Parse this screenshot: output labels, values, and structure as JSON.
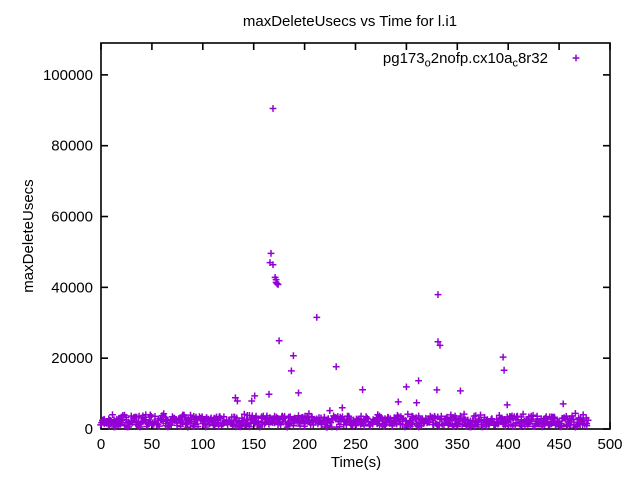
{
  "chart_data": {
    "type": "scatter",
    "title": "maxDeleteUsecs vs Time for l.i1",
    "xlabel": "Time(s)",
    "ylabel": "maxDeleteUsecs",
    "xlim": [
      0,
      500
    ],
    "ylim": [
      0,
      109000
    ],
    "xticks": [
      0,
      50,
      100,
      150,
      200,
      250,
      300,
      350,
      400,
      450,
      500
    ],
    "yticks": [
      0,
      20000,
      40000,
      60000,
      80000,
      100000
    ],
    "grid": false,
    "colors": {
      "marker": "#9400D3",
      "axis": "#000000",
      "background": "#ffffff"
    },
    "legend": {
      "position": "top-right-inside",
      "entries": [
        {
          "label_plain": "pg173_o2nofp.cx10a_c8r32",
          "label_parts": [
            {
              "t": "pg173"
            },
            {
              "sub": "o"
            },
            {
              "t": "2nofp.cx10a"
            },
            {
              "sub": "c"
            },
            {
              "t": "8r32"
            }
          ],
          "marker": "plus",
          "color": "#9400D3"
        }
      ]
    },
    "series": [
      {
        "name": "pg173_o2nofp.cx10a_c8r32",
        "marker": "plus",
        "color": "#9400D3",
        "points": [
          [
            132,
            8800
          ],
          [
            134,
            7900
          ],
          [
            148,
            7900
          ],
          [
            151,
            9350
          ],
          [
            165,
            9800
          ],
          [
            166,
            47000
          ],
          [
            167,
            49600
          ],
          [
            169,
            90500
          ],
          [
            169,
            46400
          ],
          [
            171,
            42800
          ],
          [
            172,
            42200
          ],
          [
            172,
            41400
          ],
          [
            173,
            41000
          ],
          [
            174,
            40800
          ],
          [
            175,
            24900
          ],
          [
            187,
            16400
          ],
          [
            189,
            20700
          ],
          [
            194,
            10200
          ],
          [
            212,
            31500
          ],
          [
            231,
            17600
          ],
          [
            237,
            6000
          ],
          [
            257,
            11100
          ],
          [
            292,
            7650
          ],
          [
            300,
            11900
          ],
          [
            310,
            7400
          ],
          [
            312,
            13600
          ],
          [
            330,
            11050
          ],
          [
            331,
            24650
          ],
          [
            331,
            37950
          ],
          [
            333,
            23600
          ],
          [
            353,
            10750
          ],
          [
            395,
            20300
          ],
          [
            396,
            16600
          ],
          [
            399,
            6800
          ],
          [
            454,
            7100
          ]
        ],
        "noise_band": {
          "description": "dense noise floor of samples roughly every ~0.65s",
          "t_min": 0,
          "t_max": 478,
          "count": 740,
          "seed": 1337,
          "v_base": 500,
          "v_spread": 3200,
          "bump1_p": 0.3,
          "bump1_v": 900,
          "bump2_p": 0.05,
          "bump2_v": 1500
        }
      }
    ]
  }
}
